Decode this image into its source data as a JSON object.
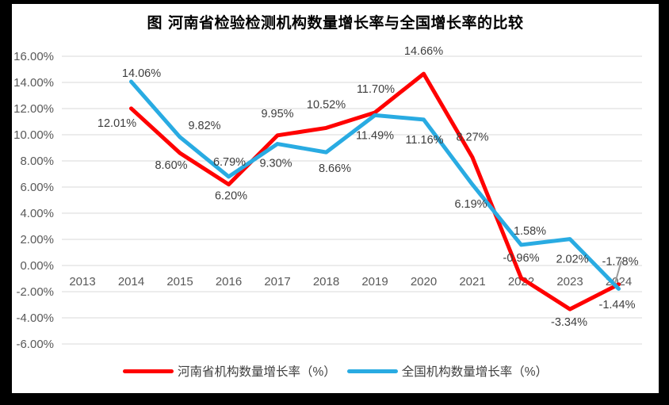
{
  "title": "图  河南省检验检测机构数量增长率与全国增长率的比较",
  "colors": {
    "henan_series": "#ff0000",
    "national_series": "#29abe2",
    "grid": "#d9d9d9",
    "axis_text": "#595959",
    "data_label_text": "#3d3d3d",
    "frame": "#000000",
    "background": "#ffffff"
  },
  "legend": {
    "position": "bottom",
    "items": [
      {
        "label": "河南省机构数量增长率（%）"
      },
      {
        "label": "全国机构数量增长率（%）"
      }
    ]
  },
  "chart_data": {
    "type": "line",
    "title": "图  河南省检验检测机构数量增长率与全国增长率的比较",
    "categories": [
      "2013",
      "2014",
      "2015",
      "2016",
      "2017",
      "2018",
      "2019",
      "2020",
      "2021",
      "2022",
      "2023",
      "2024"
    ],
    "series": [
      {
        "name": "河南省机构数量增长率（%）",
        "color": "#ff0000",
        "values": [
          null,
          12.01,
          8.6,
          6.2,
          9.95,
          10.52,
          11.7,
          14.66,
          8.27,
          -0.96,
          -3.34,
          -1.44
        ],
        "label_offsets": [
          null,
          [
            -18,
            23
          ],
          [
            -11,
            20
          ],
          [
            3,
            19
          ],
          [
            0,
            -23
          ],
          [
            0,
            -25
          ],
          [
            1,
            -25
          ],
          [
            0,
            -24
          ],
          [
            0,
            -21
          ],
          [
            0,
            -21
          ],
          [
            -1,
            21
          ],
          [
            -2,
            30
          ]
        ]
      },
      {
        "name": "全国机构数量增长率（%）",
        "color": "#29abe2",
        "values": [
          null,
          14.06,
          9.82,
          6.79,
          9.3,
          8.66,
          11.49,
          11.16,
          6.19,
          1.58,
          2.02,
          -1.78
        ],
        "label_offsets": [
          null,
          [
            13,
            -6
          ],
          [
            31,
            -10
          ],
          [
            1,
            -14
          ],
          [
            -2,
            29
          ],
          [
            11,
            25
          ],
          [
            0,
            30
          ],
          [
            1,
            30
          ],
          [
            -2,
            29
          ],
          [
            11,
            -13
          ],
          [
            3,
            30
          ],
          [
            2,
            -30
          ]
        ]
      }
    ],
    "ylim": [
      -6,
      16
    ],
    "y_tick_step": 2,
    "y_tick_labels": [
      "16.00%",
      "14.00%",
      "12.00%",
      "10.00%",
      "8.00%",
      "6.00%",
      "4.00%",
      "2.00%",
      "0.00%",
      "-2.00%",
      "-4.00%",
      "-6.00%"
    ],
    "data_label_format": "0.00%",
    "grid": true,
    "legend_position": "bottom"
  }
}
